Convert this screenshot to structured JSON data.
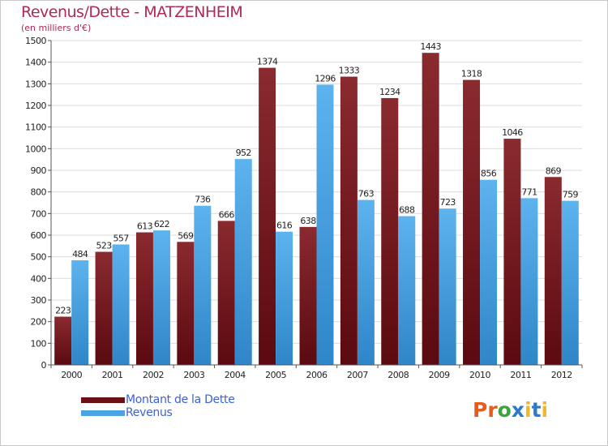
{
  "title": "Revenus/Dette - MATZENHEIM",
  "subtitle": "(en milliers d'€)",
  "logo": "Proxiti",
  "colors": {
    "dette": "#7a1a20",
    "revenus": "#4aa3e3",
    "grid": "#dddddd",
    "plot_bg": "#ffffff"
  },
  "legend": [
    {
      "label": "Montant de la Dette",
      "color": "#6b0f14"
    },
    {
      "label": "Revenus",
      "color": "#4aa3e3"
    }
  ],
  "chart_data": {
    "type": "bar",
    "title": "Revenus/Dette - MATZENHEIM",
    "subtitle": "(en milliers d'€)",
    "categories": [
      "2000",
      "2001",
      "2002",
      "2003",
      "2004",
      "2005",
      "2006",
      "2007",
      "2008",
      "2009",
      "2010",
      "2011",
      "2012"
    ],
    "series": [
      {
        "name": "Montant de la Dette",
        "values": [
          223,
          523,
          613,
          569,
          666,
          1374,
          638,
          1333,
          1234,
          1443,
          1318,
          1046,
          869
        ]
      },
      {
        "name": "Revenus",
        "values": [
          484,
          557,
          622,
          736,
          952,
          616,
          1296,
          763,
          688,
          723,
          856,
          771,
          759
        ]
      }
    ],
    "ylim": [
      0,
      1500
    ],
    "yticks": [
      0,
      100,
      200,
      300,
      400,
      500,
      600,
      700,
      800,
      900,
      1000,
      1100,
      1200,
      1300,
      1400,
      1500
    ],
    "grid": true,
    "legend_position": "bottom-left"
  }
}
